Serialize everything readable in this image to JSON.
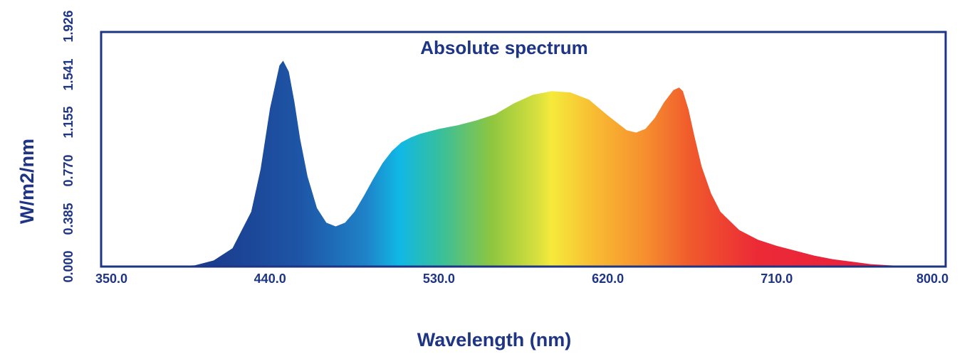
{
  "chart_data": {
    "type": "area",
    "title": "Absolute spectrum",
    "xlabel": "Wavelength (nm)",
    "ylabel": "W/m2/nm",
    "xlim": [
      350.0,
      800.0
    ],
    "ylim": [
      0.0,
      1.926
    ],
    "x_ticks": [
      "350.0",
      "440.0",
      "530.0",
      "620.0",
      "710.0",
      "800.0"
    ],
    "y_ticks": [
      "0.000",
      "0.385",
      "0.770",
      "1.155",
      "1.541",
      "1.926"
    ],
    "grid": false,
    "legend": "none",
    "series": [
      {
        "x": [
          350,
          380,
          400,
          410,
          420,
          430,
          435,
          440,
          445,
          447,
          450,
          453,
          456,
          460,
          465,
          470,
          475,
          480,
          485,
          490,
          495,
          500,
          505,
          510,
          515,
          520,
          530,
          540,
          550,
          560,
          570,
          580,
          590,
          600,
          610,
          620,
          630,
          635,
          640,
          645,
          650,
          655,
          658,
          660,
          663,
          666,
          670,
          675,
          680,
          690,
          700,
          710,
          720,
          730,
          740,
          750,
          760,
          770,
          780,
          790,
          800
        ],
        "values": [
          0.0,
          0.0,
          0.01,
          0.05,
          0.15,
          0.45,
          0.8,
          1.3,
          1.65,
          1.69,
          1.6,
          1.35,
          1.05,
          0.74,
          0.48,
          0.36,
          0.33,
          0.36,
          0.45,
          0.58,
          0.72,
          0.85,
          0.95,
          1.02,
          1.06,
          1.09,
          1.13,
          1.16,
          1.2,
          1.25,
          1.34,
          1.41,
          1.44,
          1.43,
          1.37,
          1.24,
          1.12,
          1.1,
          1.13,
          1.22,
          1.35,
          1.45,
          1.47,
          1.44,
          1.29,
          1.08,
          0.82,
          0.6,
          0.45,
          0.3,
          0.22,
          0.17,
          0.13,
          0.09,
          0.06,
          0.04,
          0.02,
          0.01,
          0.005,
          0.0,
          0.0
        ]
      }
    ],
    "fill": "visible-spectrum gradient",
    "colors": {
      "frame": "#1e3585",
      "text": "#1e3585",
      "gradient_stops": [
        "#1b3d8f",
        "#1f6cb8",
        "#10b8e6",
        "#48c08f",
        "#8ec63f",
        "#f4e93b",
        "#f7a830",
        "#f05a2c",
        "#ec1c3a"
      ]
    }
  }
}
